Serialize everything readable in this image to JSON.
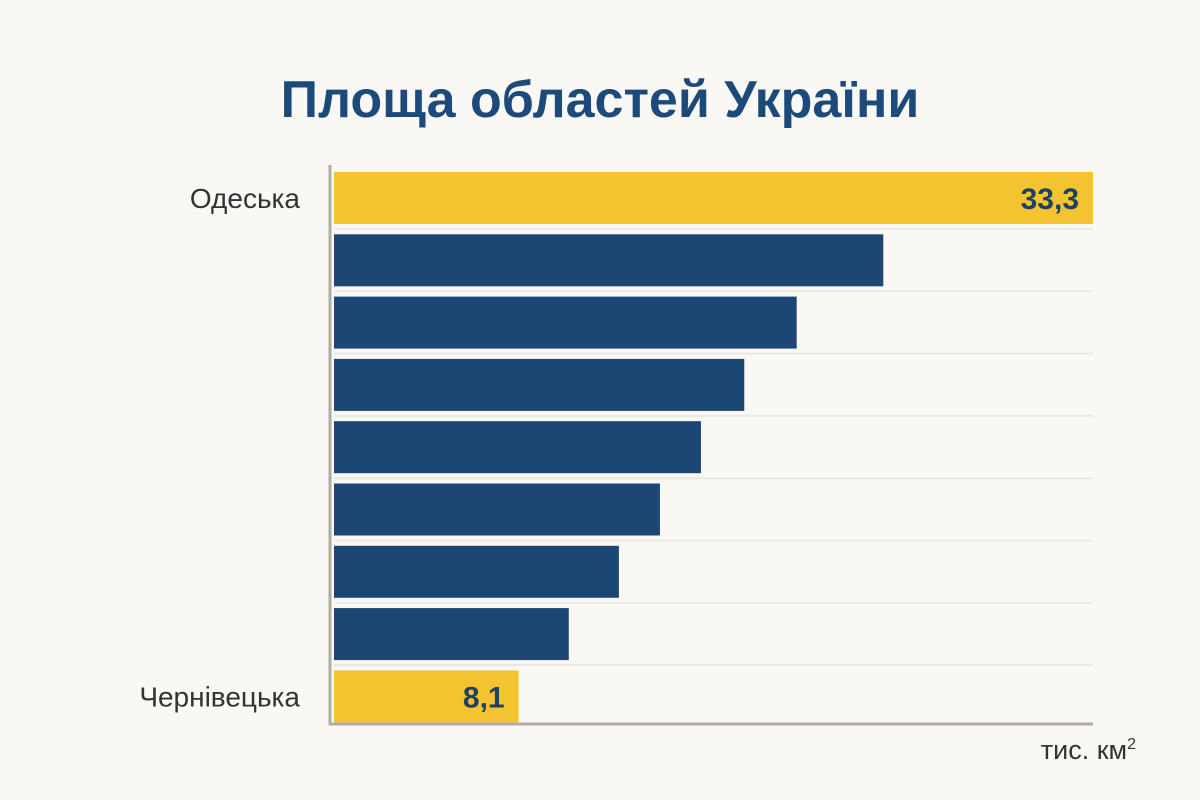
{
  "chart_data": {
    "type": "bar",
    "orientation": "horizontal",
    "title": "Площа областей України",
    "xlabel": "тис. км",
    "xlabel_superscript": "2",
    "categories": [
      "Одеська",
      "",
      "",
      "",
      "",
      "",
      "",
      "",
      "Чернівецька"
    ],
    "values": [
      33.3,
      24.1,
      20.3,
      18.0,
      16.1,
      14.3,
      12.5,
      10.3,
      8.1
    ],
    "data_labels": [
      "33,3",
      "",
      "",
      "",
      "",
      "",
      "",
      "",
      "8,1"
    ],
    "highlighted": [
      true,
      false,
      false,
      false,
      false,
      false,
      false,
      false,
      true
    ],
    "xlim": [
      0,
      33.3
    ],
    "grid": true,
    "colors": {
      "highlight": "#f4c430",
      "bar": "#1c4775",
      "label": "#1f3f63",
      "axis": "#b0aca6",
      "grid": "#ebe8e3"
    }
  }
}
